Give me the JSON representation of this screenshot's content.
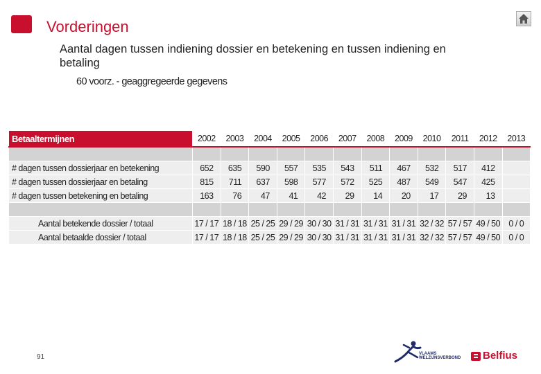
{
  "header": {
    "title": "Vorderingen",
    "subtitle": "Aantal dagen tussen indiening dossier en betekening en tussen indiening en betaling",
    "note": "60 voorz. - geaggregeerde gegevens"
  },
  "table": {
    "label_header": "Betaaltermijnen",
    "years": [
      "2002",
      "2003",
      "2004",
      "2005",
      "2006",
      "2007",
      "2008",
      "2009",
      "2010",
      "2011",
      "2012",
      "2013"
    ],
    "rows": [
      {
        "label": "# dagen tussen dossierjaar en betekening",
        "values": [
          "652",
          "635",
          "590",
          "557",
          "535",
          "543",
          "511",
          "467",
          "532",
          "517",
          "412",
          ""
        ]
      },
      {
        "label": "# dagen tussen dossierjaar en betaling",
        "values": [
          "815",
          "711",
          "637",
          "598",
          "577",
          "572",
          "525",
          "487",
          "549",
          "547",
          "425",
          ""
        ]
      },
      {
        "label": "# dagen tussen betekening en betaling",
        "values": [
          "163",
          "76",
          "47",
          "41",
          "42",
          "29",
          "14",
          "20",
          "17",
          "29",
          "13",
          ""
        ]
      }
    ],
    "fraction_rows": [
      {
        "label": "Aantal betekende dossier / totaal",
        "values": [
          "17 / 17",
          "18 / 18",
          "25 / 25",
          "29 / 29",
          "30 / 30",
          "31 / 31",
          "31 / 31",
          "31 / 31",
          "32 / 32",
          "57 / 57",
          "49 / 50",
          "0 / 0"
        ]
      },
      {
        "label": "Aantal betaalde dossier / totaal",
        "values": [
          "17 / 17",
          "18 / 18",
          "25 / 25",
          "29 / 29",
          "30 / 30",
          "31 / 31",
          "31 / 31",
          "31 / 31",
          "32 / 32",
          "57 / 57",
          "49 / 50",
          "0 / 0"
        ]
      }
    ]
  },
  "footer": {
    "page_number": "91",
    "vvsg_line1": "VLAAMS",
    "vvsg_line2": "WELZIJNSVERBOND",
    "belfius": "Belfius"
  },
  "colors": {
    "accent": "#c8102e",
    "cell_bg": "#eeeeee",
    "spacer_bg": "#d3d3d3",
    "vvsg_blue": "#1f2a6b"
  },
  "icons": {
    "home": "home-icon",
    "vvsg": "vvsg-logo-icon",
    "belfius": "belfius-logo-icon"
  }
}
